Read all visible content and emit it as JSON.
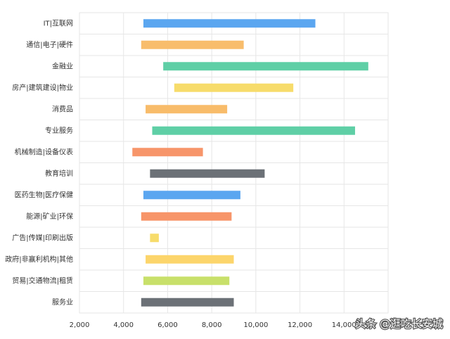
{
  "chart_data": {
    "type": "range-bar",
    "categories": [
      "IT|互联网",
      "通信|电子|硬件",
      "金融业",
      "房产|建筑建设|物业",
      "消费品",
      "专业服务",
      "机械制造|设备仪表",
      "教育培训",
      "医药生物|医疗保健",
      "能源|矿业|环保",
      "广告|传媒|印刷出版",
      "政府|非赢利机构|其他",
      "贸易|交通物流|租赁",
      "服务业"
    ],
    "low": [
      4900,
      4800,
      5800,
      6300,
      5000,
      5300,
      4400,
      5200,
      4900,
      4800,
      5200,
      5000,
      4900,
      4800
    ],
    "high": [
      12700,
      9450,
      15100,
      11700,
      8700,
      14500,
      7600,
      10400,
      9300,
      8900,
      5600,
      9000,
      8800,
      9000
    ],
    "colors": [
      "#5ba6f0",
      "#f8bd6c",
      "#5fcfa6",
      "#f7dc6b",
      "#f8bc6a",
      "#5fcfa6",
      "#f7956a",
      "#6c7177",
      "#5ba6f0",
      "#f7956a",
      "#f7dc6b",
      "#fcd56b",
      "#c8e06a",
      "#6c7177"
    ],
    "xlim": [
      2000,
      16000
    ],
    "xticks": [
      {
        "value": 2000,
        "label": "2,000"
      },
      {
        "value": 4000,
        "label": "4,000"
      },
      {
        "value": 6000,
        "label": "6,000"
      },
      {
        "value": 8000,
        "label": "8,000"
      },
      {
        "value": 10000,
        "label": "10,000"
      },
      {
        "value": 12000,
        "label": "12,000"
      },
      {
        "value": 14000,
        "label": "14,000"
      }
    ],
    "grid": true,
    "watermark": "头条 @逛吃长安城"
  }
}
